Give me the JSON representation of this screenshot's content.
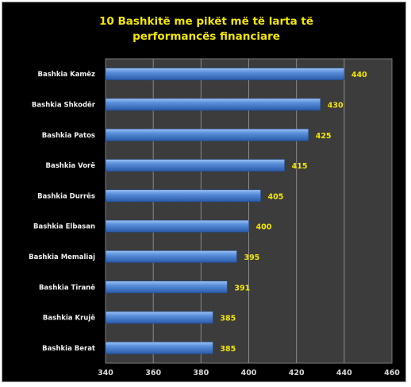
{
  "chart_data": {
    "type": "bar",
    "orientation": "horizontal",
    "title": "10 Bashkitë me pikët më të larta të performancës financiare",
    "title_lines": [
      "10 Bashkitë me pikët më të larta të",
      "performancës financiare"
    ],
    "categories": [
      "Bashkia Kamëz",
      "Bashkia Shkodër",
      "Bashkia Patos",
      "Bashkia Vorë",
      "Bashkia Durrës",
      "Bashkia Elbasan",
      "Bashkia Memaliaj",
      "Bashkia Tiranë",
      "Bashkia Krujë",
      "Bashkia Berat"
    ],
    "values": [
      440,
      430,
      425,
      415,
      405,
      400,
      395,
      391,
      385,
      385
    ],
    "xlim": [
      340,
      460
    ],
    "xticks": [
      340,
      360,
      380,
      400,
      420,
      440,
      460
    ],
    "grid": "vertical",
    "legend": "none",
    "colors": {
      "background": "#000000",
      "plot_area": "#3c3c3c",
      "bar": "#4f86d6",
      "title": "#f2e600",
      "value_labels": "#f2e600",
      "category_labels": "#f0f0f0"
    }
  }
}
